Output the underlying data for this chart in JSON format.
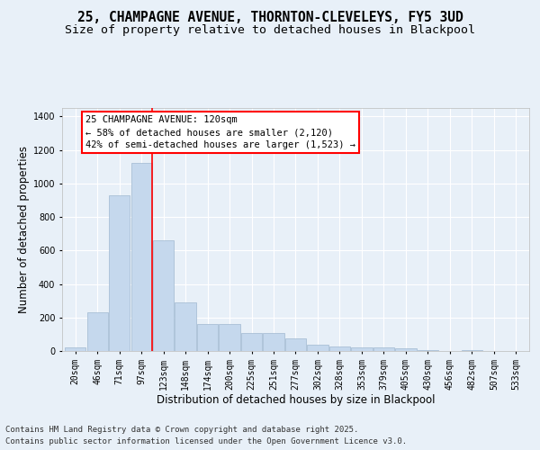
{
  "title_line1": "25, CHAMPAGNE AVENUE, THORNTON-CLEVELEYS, FY5 3UD",
  "title_line2": "Size of property relative to detached houses in Blackpool",
  "xlabel": "Distribution of detached houses by size in Blackpool",
  "ylabel": "Number of detached properties",
  "categories": [
    "20sqm",
    "46sqm",
    "71sqm",
    "97sqm",
    "123sqm",
    "148sqm",
    "174sqm",
    "200sqm",
    "225sqm",
    "251sqm",
    "277sqm",
    "302sqm",
    "328sqm",
    "353sqm",
    "379sqm",
    "405sqm",
    "430sqm",
    "456sqm",
    "482sqm",
    "507sqm",
    "533sqm"
  ],
  "values": [
    20,
    230,
    930,
    1120,
    660,
    290,
    160,
    160,
    110,
    110,
    75,
    40,
    25,
    20,
    20,
    15,
    5,
    0,
    5,
    0,
    0
  ],
  "bar_color": "#c5d8ed",
  "bar_edge_color": "#a0b8d0",
  "red_line_x": 3.5,
  "annotation_line1": "25 CHAMPAGNE AVENUE: 120sqm",
  "annotation_line2": "← 58% of detached houses are smaller (2,120)",
  "annotation_line3": "42% of semi-detached houses are larger (1,523) →",
  "ylim": [
    0,
    1450
  ],
  "yticks": [
    0,
    200,
    400,
    600,
    800,
    1000,
    1200,
    1400
  ],
  "bg_color": "#e8f0f8",
  "plot_bg_color": "#e8f0f8",
  "footer_line1": "Contains HM Land Registry data © Crown copyright and database right 2025.",
  "footer_line2": "Contains public sector information licensed under the Open Government Licence v3.0.",
  "title_fontsize": 10.5,
  "subtitle_fontsize": 9.5,
  "axis_label_fontsize": 8.5,
  "tick_fontsize": 7,
  "annotation_fontsize": 7.5,
  "footer_fontsize": 6.5
}
